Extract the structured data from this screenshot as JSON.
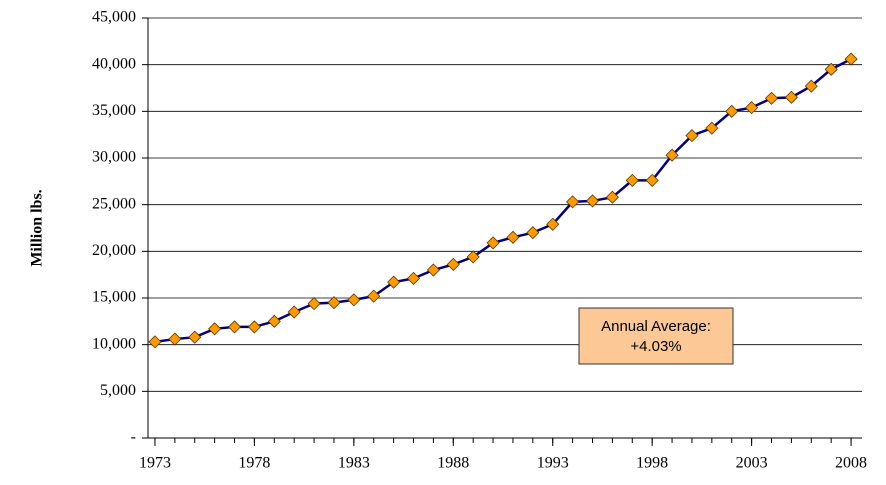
{
  "chart_data": {
    "type": "line",
    "y_label": "Million lbs.",
    "annotation": [
      "Annual Average:",
      "+4.03%"
    ],
    "x": [
      1973,
      1974,
      1975,
      1976,
      1977,
      1978,
      1979,
      1980,
      1981,
      1982,
      1983,
      1984,
      1985,
      1986,
      1987,
      1988,
      1989,
      1990,
      1991,
      1992,
      1993,
      1994,
      1995,
      1996,
      1997,
      1998,
      1999,
      2000,
      2001,
      2002,
      2003,
      2004,
      2005,
      2006,
      2007,
      2008
    ],
    "series": [
      {
        "color": "#000080",
        "marker_color": "#ff9900",
        "values": [
          10300,
          10600,
          10800,
          11700,
          11900,
          11900,
          12500,
          13500,
          14400,
          14500,
          14800,
          15200,
          16700,
          17100,
          18000,
          18600,
          19400,
          20900,
          21500,
          22000,
          22900,
          25300,
          25400,
          25800,
          27600,
          27600,
          30300,
          32400,
          33200,
          35000,
          35400,
          36400,
          36500,
          37700,
          39500,
          40600
        ]
      }
    ],
    "xlim": [
      1972.65,
      2008.55
    ],
    "xticks": [
      1973,
      1978,
      1983,
      1988,
      1993,
      1998,
      2003,
      2008
    ],
    "ylim": [
      0,
      45000
    ],
    "yticks": [
      {
        "value": 0,
        "label": "-"
      },
      {
        "value": 5000,
        "label": "5,000"
      },
      {
        "value": 10000,
        "label": "10,000"
      },
      {
        "value": 15000,
        "label": "15,000"
      },
      {
        "value": 20000,
        "label": "20,000"
      },
      {
        "value": 25000,
        "label": "25,000"
      },
      {
        "value": 30000,
        "label": "30,000"
      },
      {
        "value": 35000,
        "label": "35,000"
      },
      {
        "value": 40000,
        "label": "40,000"
      },
      {
        "value": 45000,
        "label": "45,000"
      }
    ],
    "grid": true
  }
}
